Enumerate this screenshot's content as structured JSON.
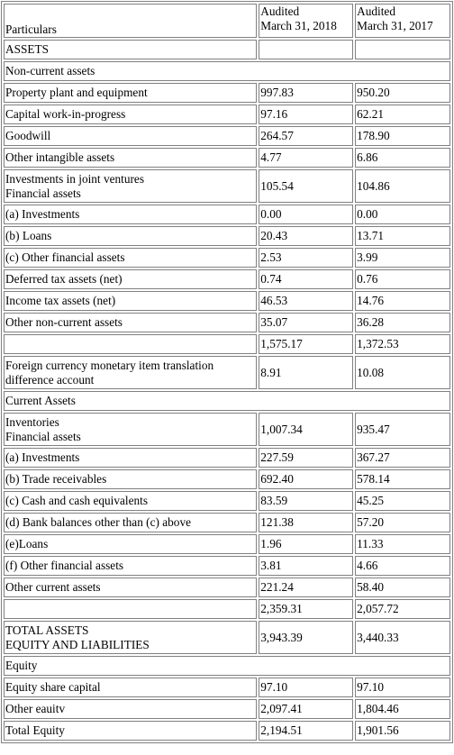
{
  "header": {
    "particulars": "Particulars",
    "col2": [
      "Audited",
      "March 31, 2018"
    ],
    "col3": [
      "Audited",
      "March 31, 2017"
    ]
  },
  "rows": [
    {
      "label": [
        "ASSETS"
      ],
      "v1": "",
      "v2": "",
      "span": false
    },
    {
      "label": [
        "Non-current assets"
      ],
      "span": true
    },
    {
      "label": [
        "Property plant and equipment"
      ],
      "v1": "997.83",
      "v2": "950.20"
    },
    {
      "label": [
        "Capital work-in-progress"
      ],
      "v1": "97.16",
      "v2": "62.21"
    },
    {
      "label": [
        "Goodwill"
      ],
      "v1": "264.57",
      "v2": "178.90"
    },
    {
      "label": [
        "Other intangible assets"
      ],
      "v1": "4.77",
      "v2": "6.86"
    },
    {
      "label": [
        "Investments in joint ventures",
        "Financial assets"
      ],
      "v1": "105.54",
      "v2": "104.86"
    },
    {
      "label": [
        "(a) Investments"
      ],
      "v1": "0.00",
      "v2": "0.00"
    },
    {
      "label": [
        "(b) Loans"
      ],
      "v1": "20.43",
      "v2": "13.71"
    },
    {
      "label": [
        "(c) Other financial assets"
      ],
      "v1": "2.53",
      "v2": "3.99"
    },
    {
      "label": [
        "Deferred tax assets (net)"
      ],
      "v1": "0.74",
      "v2": "0.76"
    },
    {
      "label": [
        "Income tax assets (net)"
      ],
      "v1": "46.53",
      "v2": "14.76"
    },
    {
      "label": [
        "Other non-current assets"
      ],
      "v1": "35.07",
      "v2": "36.28"
    },
    {
      "label": [
        ""
      ],
      "v1": "1,575.17",
      "v2": "1,372.53"
    },
    {
      "label": [
        "Foreign currency monetary item translation",
        "difference account"
      ],
      "v1": "8.91",
      "v2": "10.08"
    },
    {
      "label": [
        "Current Assets"
      ],
      "span": true
    },
    {
      "label": [
        "Inventories",
        "Financial assets"
      ],
      "v1": "1,007.34",
      "v2": "935.47"
    },
    {
      "label": [
        "(a) Investments"
      ],
      "v1": "227.59",
      "v2": "367.27"
    },
    {
      "label": [
        "(b) Trade receivables"
      ],
      "v1": "692.40",
      "v2": "578.14"
    },
    {
      "label": [
        "(c) Cash and cash equivalents"
      ],
      "v1": "83.59",
      "v2": "45.25"
    },
    {
      "label": [
        "(d) Bank balances other than (c) above"
      ],
      "v1": "121.38",
      "v2": "57.20"
    },
    {
      "label": [
        "(e)Loans"
      ],
      "v1": "1.96",
      "v2": "11.33"
    },
    {
      "label": [
        "(f) Other financial assets"
      ],
      "v1": "3.81",
      "v2": "4.66"
    },
    {
      "label": [
        "Other current assets"
      ],
      "v1": "221.24",
      "v2": "58.40"
    },
    {
      "label": [
        ""
      ],
      "v1": "2,359.31",
      "v2": "2,057.72"
    },
    {
      "label": [
        "TOTAL ASSETS",
        "EQUITY AND LIABILITIES"
      ],
      "v1": "3,943.39",
      "v2": "3,440.33"
    },
    {
      "label": [
        "Equity"
      ],
      "span": true
    },
    {
      "label": [
        "Equity share capital"
      ],
      "v1": "97.10",
      "v2": "97.10"
    },
    {
      "label": [
        "Other eauitv"
      ],
      "v1": "2,097.41",
      "v2": "1,804.46"
    },
    {
      "label": [
        "Total Equity"
      ],
      "v1": "2,194.51",
      "v2": "1,901.56"
    }
  ]
}
